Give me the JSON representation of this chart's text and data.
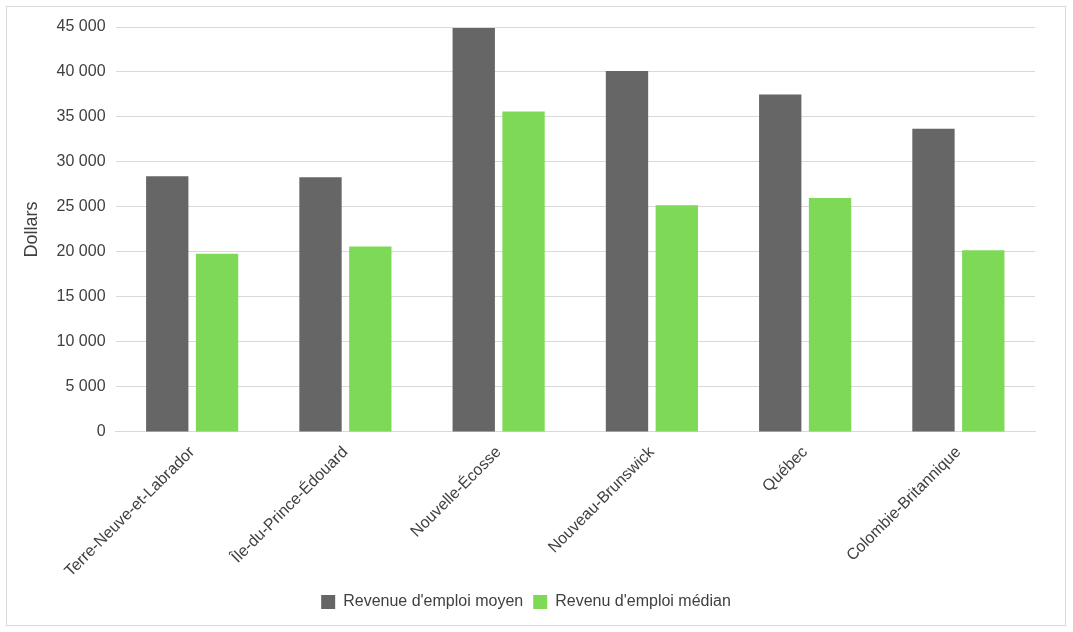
{
  "chart_data": {
    "type": "bar",
    "ylabel": "Dollars",
    "categories": [
      "Terre-Neuve-et-Labrador",
      "Île-du-Prince-Édouard",
      "Nouvelle-Écosse",
      "Nouveau-Brunswick",
      "Québec",
      "Colombie-Britannique"
    ],
    "series": [
      {
        "name": "Revenue d'emploi moyen",
        "color": "#666666",
        "values": [
          28400,
          28300,
          44900,
          40100,
          37500,
          33700
        ]
      },
      {
        "name": "Revenu d'emploi médian",
        "color": "#7ed957",
        "values": [
          19800,
          20600,
          35600,
          25200,
          26000,
          20200
        ]
      }
    ],
    "ylim": [
      0,
      45000
    ],
    "yticks": [
      {
        "value": 0,
        "label": "0"
      },
      {
        "value": 5000,
        "label": "5 000"
      },
      {
        "value": 10000,
        "label": "10 000"
      },
      {
        "value": 15000,
        "label": "15 000"
      },
      {
        "value": 20000,
        "label": "20 000"
      },
      {
        "value": 25000,
        "label": "25 000"
      },
      {
        "value": 30000,
        "label": "30 000"
      },
      {
        "value": 35000,
        "label": "35 000"
      },
      {
        "value": 40000,
        "label": "40 000"
      },
      {
        "value": 45000,
        "label": "45 000"
      }
    ],
    "grid": "y",
    "legend": "bottom"
  }
}
